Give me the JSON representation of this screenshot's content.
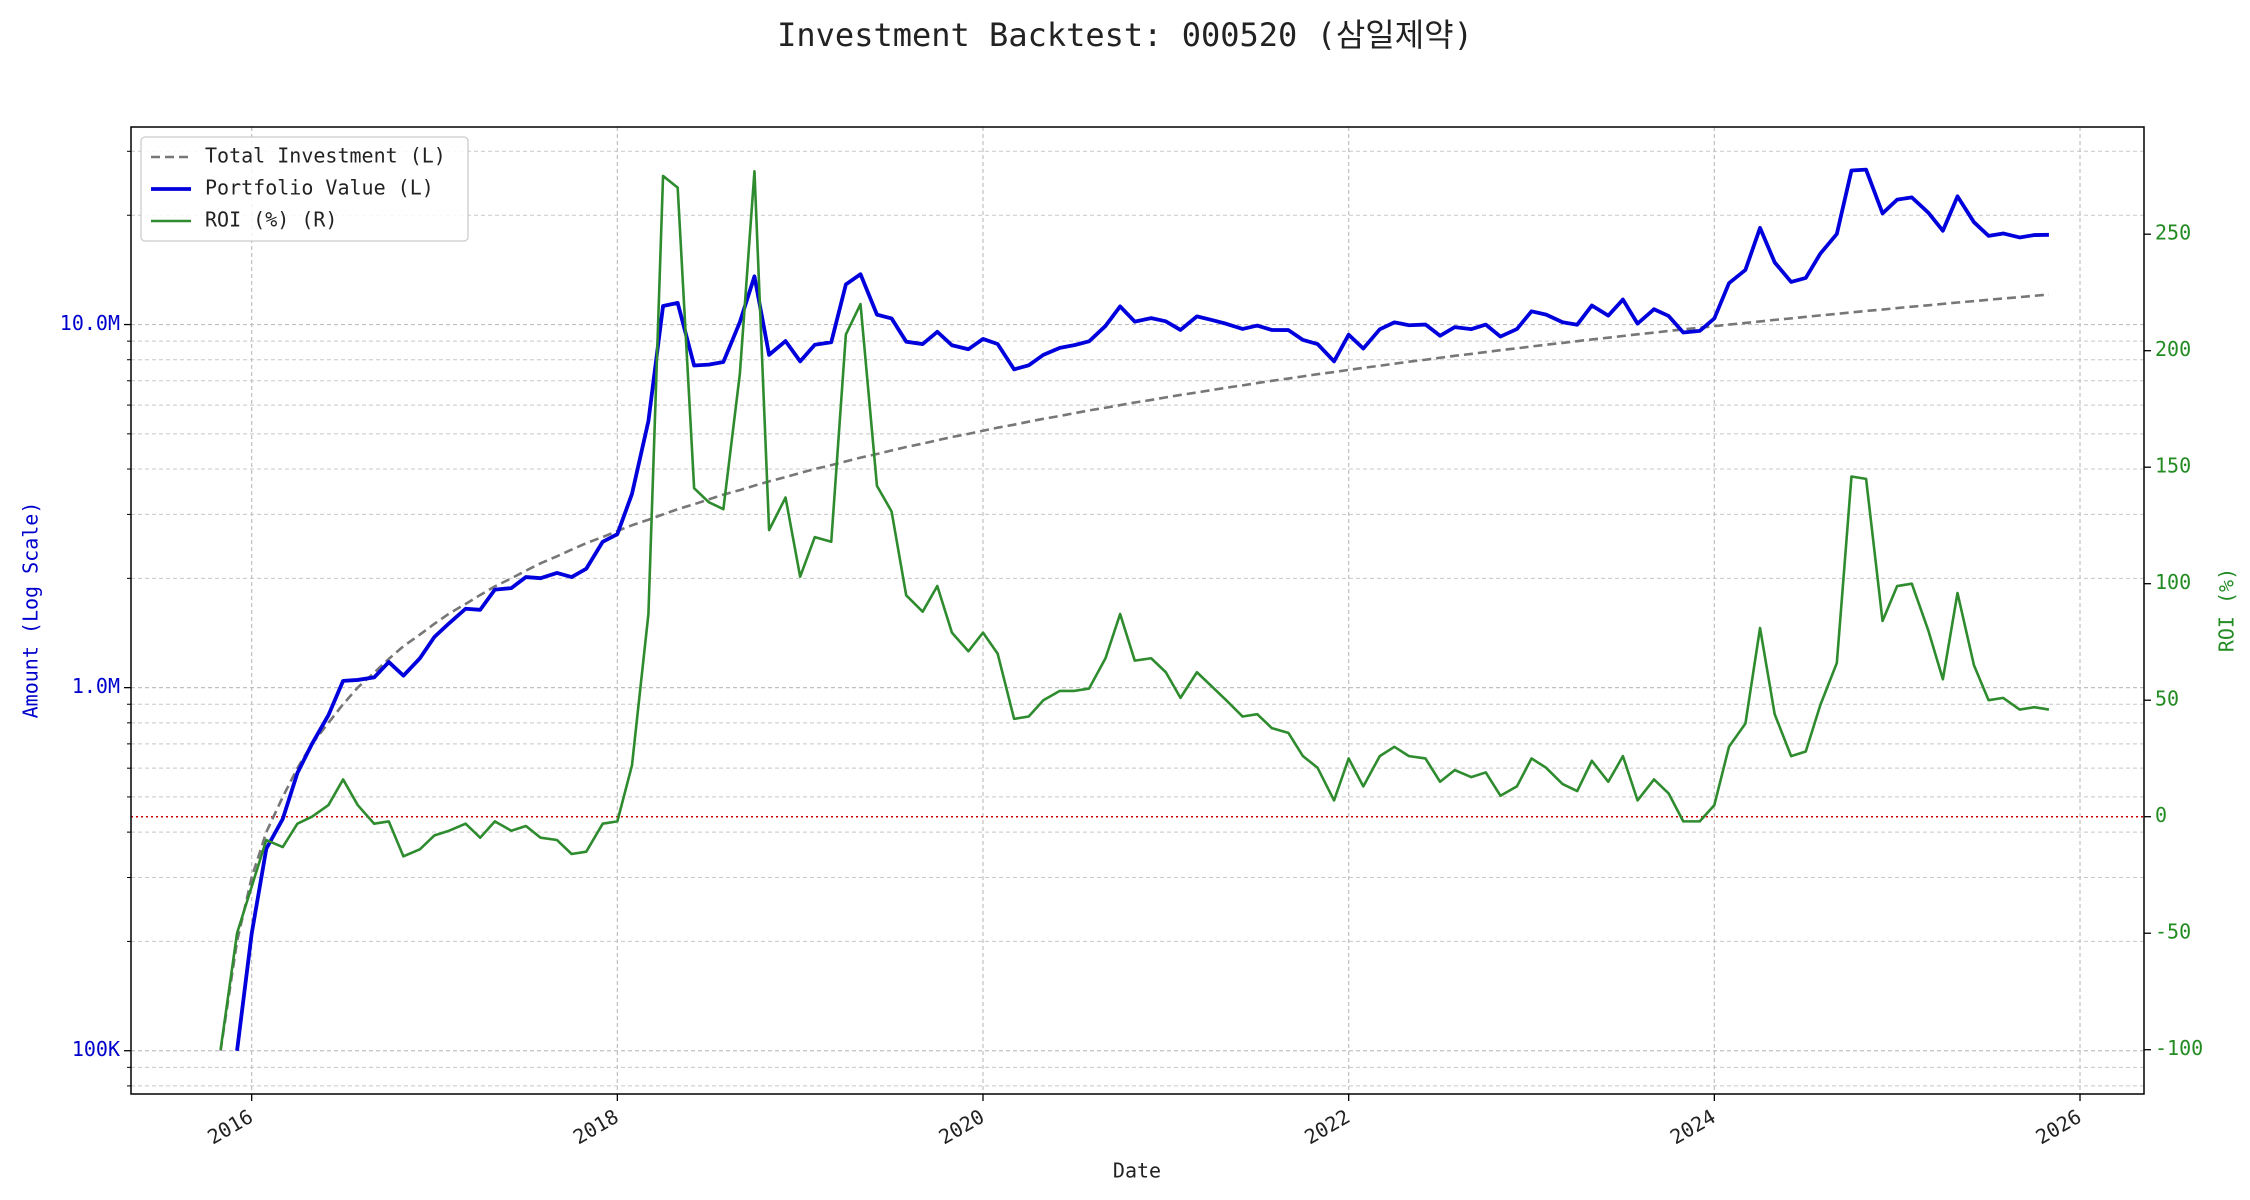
{
  "chart_data": {
    "type": "line",
    "title": "Investment Backtest: 000520 (삼일제약)",
    "xlabel": "Date",
    "ylabel": "Amount (Log Scale)",
    "y2label": "ROI (%)",
    "ylog": true,
    "grid": true,
    "legend": "upper left",
    "ycolor": "#0000cc",
    "y2color": "#228b22",
    "xlim": [
      2015.34,
      2026.35
    ],
    "xticks": [
      2016,
      2018,
      2020,
      2022,
      2024,
      2026
    ],
    "ylim": [
      76000,
      35000000
    ],
    "yticks": [
      {
        "value": 100000,
        "label": "100K"
      },
      {
        "value": 1000000,
        "label": "1.0M"
      },
      {
        "value": 10000000,
        "label": "10.0M"
      }
    ],
    "yminorticks": [
      80000,
      90000,
      200000,
      300000,
      400000,
      500000,
      600000,
      700000,
      800000,
      900000,
      2000000,
      3000000,
      4000000,
      5000000,
      6000000,
      7000000,
      8000000,
      9000000,
      20000000,
      30000000
    ],
    "y2lim": [
      -119,
      296
    ],
    "y2ticks": [
      -100,
      -50,
      0,
      50,
      100,
      150,
      200,
      250
    ],
    "hline": {
      "value": 0,
      "axis": "y2",
      "color": "#cc0000"
    },
    "x": [
      2015.83,
      2015.92,
      2016.0,
      2016.08,
      2016.17,
      2016.25,
      2016.33,
      2016.42,
      2016.5,
      2016.58,
      2016.67,
      2016.75,
      2016.83,
      2016.92,
      2017.0,
      2017.08,
      2017.17,
      2017.25,
      2017.33,
      2017.42,
      2017.5,
      2017.58,
      2017.67,
      2017.75,
      2017.83,
      2017.92,
      2018.0,
      2018.08,
      2018.17,
      2018.25,
      2018.33,
      2018.42,
      2018.5,
      2018.58,
      2018.67,
      2018.75,
      2018.83,
      2018.92,
      2019.0,
      2019.08,
      2019.17,
      2019.25,
      2019.33,
      2019.42,
      2019.5,
      2019.58,
      2019.67,
      2019.75,
      2019.83,
      2019.92,
      2020.0,
      2020.08,
      2020.17,
      2020.25,
      2020.33,
      2020.42,
      2020.5,
      2020.58,
      2020.67,
      2020.75,
      2020.83,
      2020.92,
      2021.0,
      2021.08,
      2021.17,
      2021.25,
      2021.33,
      2021.42,
      2021.5,
      2021.58,
      2021.67,
      2021.75,
      2021.83,
      2021.92,
      2022.0,
      2022.08,
      2022.17,
      2022.25,
      2022.33,
      2022.42,
      2022.5,
      2022.58,
      2022.67,
      2022.75,
      2022.83,
      2022.92,
      2023.0,
      2023.08,
      2023.17,
      2023.25,
      2023.33,
      2023.42,
      2023.5,
      2023.58,
      2023.67,
      2023.75,
      2023.83,
      2023.92,
      2024.0,
      2024.08,
      2024.17,
      2024.25,
      2024.33,
      2024.42,
      2024.5,
      2024.58,
      2024.67,
      2024.75,
      2024.83,
      2024.92,
      2025.0,
      2025.08,
      2025.17,
      2025.25,
      2025.33,
      2025.42,
      2025.5,
      2025.58,
      2025.67,
      2025.75,
      2025.83
    ],
    "series": [
      {
        "name": "Total Investment (L)",
        "color": "#777777",
        "linestyle": "dashed",
        "axis": "y",
        "values": [
          100000,
          200000,
          300000,
          400000,
          500000,
          600000,
          700000,
          800000,
          900000,
          1000000,
          1100000,
          1200000,
          1300000,
          1400000,
          1500000,
          1600000,
          1700000,
          1800000,
          1900000,
          2000000,
          2100000,
          2200000,
          2300000,
          2400000,
          2500000,
          2600000,
          2700000,
          2800000,
          2900000,
          3000000,
          3100000,
          3200000,
          3300000,
          3400000,
          3500000,
          3600000,
          3700000,
          3800000,
          3900000,
          4000000,
          4100000,
          4200000,
          4300000,
          4400000,
          4500000,
          4600000,
          4700000,
          4800000,
          4900000,
          5000000,
          5100000,
          5200000,
          5300000,
          5400000,
          5500000,
          5600000,
          5700000,
          5800000,
          5900000,
          6000000,
          6100000,
          6200000,
          6300000,
          6400000,
          6500000,
          6600000,
          6700000,
          6800000,
          6900000,
          7000000,
          7100000,
          7200000,
          7300000,
          7400000,
          7500000,
          7600000,
          7700000,
          7800000,
          7900000,
          8000000,
          8100000,
          8200000,
          8300000,
          8400000,
          8500000,
          8600000,
          8700000,
          8800000,
          8900000,
          9000000,
          9100000,
          9200000,
          9300000,
          9400000,
          9500000,
          9600000,
          9700000,
          9800000,
          9900000,
          10000000,
          10100000,
          10200000,
          10300000,
          10400000,
          10500000,
          10600000,
          10700000,
          10800000,
          10900000,
          11000000,
          11100000,
          11200000,
          11300000,
          11400000,
          11500000,
          11600000,
          11700000,
          11800000,
          11900000,
          12000000,
          12100000
        ]
      },
      {
        "name": "Portfolio Value (L)",
        "color": "#0000dd",
        "linestyle": "solid",
        "axis": "y",
        "values": [
          null,
          100000,
          210000,
          360000,
          435000,
          582000,
          700000,
          840000,
          1044000,
          1050000,
          1067000,
          1176000,
          1079000,
          1204000,
          1380000,
          1504000,
          1649000,
          1638000,
          1862000,
          1880000,
          2016000,
          2002000,
          2070000,
          2016000,
          2125000,
          2522000,
          2646000,
          3416000,
          5423000,
          11250000,
          11470000,
          7712000,
          7755000,
          7888000,
          10150000,
          13572000,
          8251000,
          9006000,
          7917000,
          8800000,
          8938000,
          12894000,
          13760000,
          10648000,
          10395000,
          8970000,
          8836000,
          9552000,
          8771000,
          8550000,
          9129000,
          8840000,
          7526000,
          7722000,
          8250000,
          8624000,
          8778000,
          8990000,
          9912000,
          11220000,
          10187000,
          10416000,
          10206000,
          9664000,
          10530000,
          10296000,
          10050000,
          9724000,
          9936000,
          9660000,
          9656000,
          9072000,
          8833000,
          7918000,
          9375000,
          8588000,
          9702000,
          10140000,
          9954000,
          10000000,
          9315000,
          9840000,
          9711000,
          9996000,
          9265000,
          9718000,
          10875000,
          10648000,
          10146000,
          9990000,
          11284000,
          10580000,
          11718000,
          10058000,
          11020000,
          10560000,
          9506000,
          9604000,
          10395000,
          13000000,
          14140000,
          18462000,
          14832000,
          13104000,
          13440000,
          15688000,
          17762000,
          26568000,
          26705000,
          20240000,
          22089000,
          22400000,
          20340000,
          18126000,
          22540000,
          19140000,
          17550000,
          17818000,
          17374000,
          17640000,
          17666000
        ]
      },
      {
        "name": "ROI (%) (R)",
        "color": "#2e8b2e",
        "linestyle": "solid",
        "axis": "y2",
        "values": [
          -100,
          -50,
          -30,
          -10,
          -13,
          -3,
          0,
          5,
          16,
          5,
          -3,
          -2,
          -17,
          -14,
          -8,
          -6,
          -3,
          -9,
          -2,
          -6,
          -4,
          -9,
          -10,
          -16,
          -15,
          -3,
          -2,
          22,
          87,
          275,
          270,
          141,
          135,
          132,
          190,
          277,
          123,
          137,
          103,
          120,
          118,
          207,
          220,
          142,
          131,
          95,
          88,
          99,
          79,
          71,
          79,
          70,
          42,
          43,
          50,
          54,
          54,
          55,
          68,
          87,
          67,
          68,
          62,
          51,
          62,
          56,
          50,
          43,
          44,
          38,
          36,
          26,
          21,
          7,
          25,
          13,
          26,
          30,
          26,
          25,
          15,
          20,
          17,
          19,
          9,
          13,
          25,
          21,
          14,
          11,
          24,
          15,
          26,
          7,
          16,
          10,
          -2,
          -2,
          5,
          30,
          40,
          81,
          44,
          26,
          28,
          48,
          66,
          146,
          145,
          84,
          99,
          100,
          80,
          59,
          96,
          65,
          50,
          51,
          46,
          47,
          46
        ]
      }
    ]
  }
}
